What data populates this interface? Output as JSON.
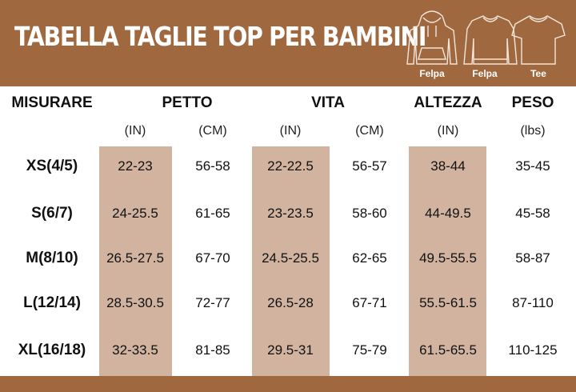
{
  "title": "TABELLA TAGLIE TOP PER BAMBINI",
  "garments": [
    {
      "icon": "hoodie-icon",
      "label": "Felpa"
    },
    {
      "icon": "sweatshirt-icon",
      "label": "Felpa"
    },
    {
      "icon": "tshirt-icon",
      "label": "Tee"
    }
  ],
  "colors": {
    "brand": "#A0683E",
    "shade": "#D1B3A0"
  },
  "table": {
    "headers": [
      "MISURARE",
      "PETTO",
      "VITA",
      "ALTEZZA",
      "PESO"
    ],
    "units": [
      "(IN)",
      "(CM)",
      "(IN)",
      "(CM)",
      "(IN)",
      "(lbs)"
    ],
    "rows": [
      {
        "size": "XS(4/5)",
        "values": [
          "22-23",
          "56-58",
          "22-22.5",
          "56-57",
          "38-44",
          "35-45"
        ]
      },
      {
        "size": "S(6/7)",
        "values": [
          "24-25.5",
          "61-65",
          "23-23.5",
          "58-60",
          "44-49.5",
          "45-58"
        ]
      },
      {
        "size": "M(8/10)",
        "values": [
          "26.5-27.5",
          "67-70",
          "24.5-25.5",
          "62-65",
          "49.5-55.5",
          "58-87"
        ]
      },
      {
        "size": "L(12/14)",
        "values": [
          "28.5-30.5",
          "72-77",
          "26.5-28",
          "67-71",
          "55.5-61.5",
          "87-110"
        ]
      },
      {
        "size": "XL(16/18)",
        "values": [
          "32-33.5",
          "81-85",
          "29.5-31",
          "75-79",
          "61.5-65.5",
          "110-125"
        ]
      }
    ]
  }
}
